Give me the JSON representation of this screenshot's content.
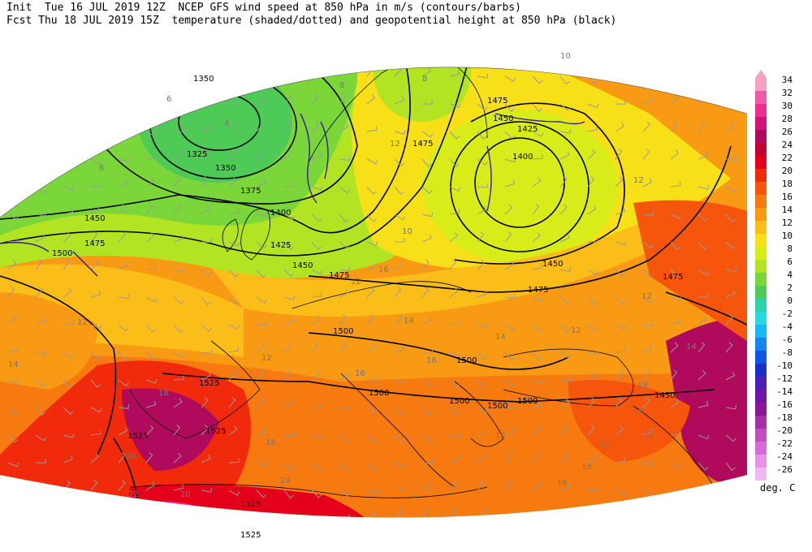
{
  "header": {
    "init_line": "Init  Tue 16 JUL 2019 12Z  NCEP GFS wind speed at 850 hPa in m/s (contours/barbs)",
    "fcst_line": "Fcst Thu 18 JUL 2019 15Z  temperature (shaded/dotted) and geopotential height at 850 hPa (black)"
  },
  "colorbar": {
    "unit": "deg. C",
    "levels": [
      "34",
      "32",
      "30",
      "28",
      "26",
      "24",
      "22",
      "20",
      "18",
      "16",
      "14",
      "12",
      "10",
      "8",
      "6",
      "4",
      "2",
      "0",
      "-2",
      "-4",
      "-6",
      "-8",
      "-10",
      "-12",
      "-14",
      "-16",
      "-18",
      "-20",
      "-22",
      "-24",
      "-26"
    ],
    "colors": [
      "#f7a1c0",
      "#f25aa8",
      "#ec2f8f",
      "#d4127c",
      "#b00a5c",
      "#c40032",
      "#e4001a",
      "#f22a0c",
      "#f5560c",
      "#f67a10",
      "#f89a14",
      "#fbbd17",
      "#f7e018",
      "#d8ec1a",
      "#b3e424",
      "#7bd63a",
      "#4ecb57",
      "#2fd2a6",
      "#27d9e0",
      "#18b8f4",
      "#1186f0",
      "#0f55e8",
      "#1830c8",
      "#4a20b8",
      "#6d16a8",
      "#8a1698",
      "#a62fa8",
      "#c24cc0",
      "#d86ad8",
      "#e892e8",
      "#f2b6f2"
    ]
  },
  "height_labels": [
    "1350",
    "1325",
    "1350",
    "1375",
    "1400",
    "1425",
    "1450",
    "1475",
    "1475",
    "1450",
    "1475",
    "1500",
    "1525",
    "1525",
    "1525",
    "1500",
    "1500",
    "1500",
    "1500",
    "1500",
    "1525",
    "1525",
    "1400",
    "1425",
    "1450",
    "1475",
    "1450",
    "1475",
    "1475",
    "1450",
    "1500"
  ],
  "temp_labels": [
    "6",
    "8",
    "8",
    "4",
    "6",
    "10",
    "12",
    "12",
    "10",
    "12",
    "12",
    "14",
    "16",
    "12",
    "14",
    "12",
    "16",
    "14",
    "16",
    "18",
    "18",
    "18",
    "20",
    "16",
    "20",
    "22",
    "24",
    "20",
    "22",
    "18",
    "16",
    "18",
    "14",
    "12"
  ]
}
